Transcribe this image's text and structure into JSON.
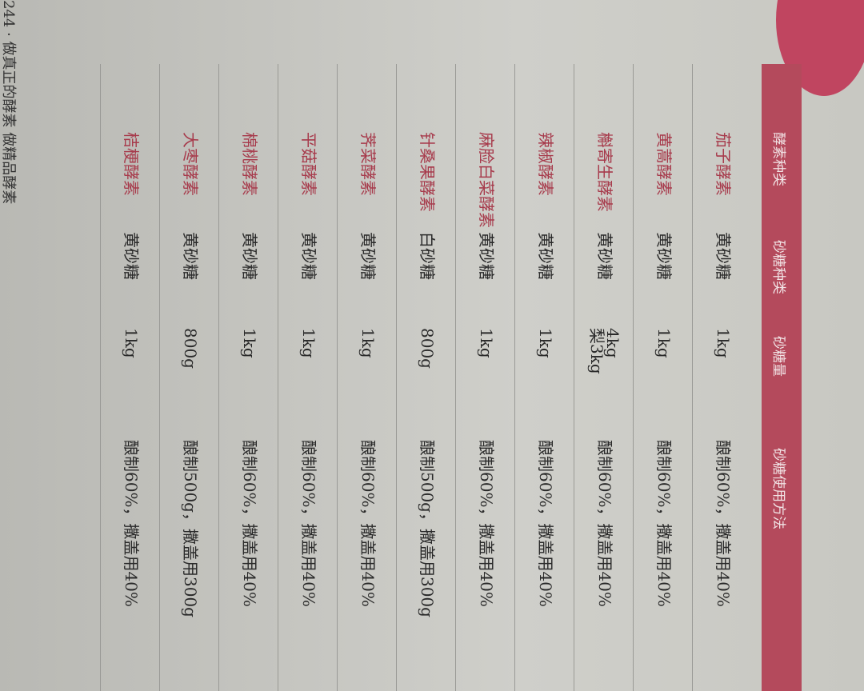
{
  "table": {
    "header": [
      "酵素种类",
      "砂糖种类",
      "砂糖量",
      "砂糖使用方法"
    ],
    "rows": [
      [
        "茄子酵素",
        "黄砂糖",
        "1kg",
        "酿制60%，撒盖用40%"
      ],
      [
        "黄蒿酵素",
        "黄砂糖",
        "1kg",
        "酿制60%，撒盖用40%"
      ],
      [
        "槲寄生酵素",
        "黄砂糖",
        "4kg\n梨3kg",
        "酿制60%，撒盖用40%"
      ],
      [
        "辣椒酵素",
        "黄砂糖",
        "1kg",
        "酿制60%，撒盖用40%"
      ],
      [
        "麻脸白菜酵素",
        "黄砂糖",
        "1kg",
        "酿制60%，撒盖用40%"
      ],
      [
        "针桑果酵素",
        "白砂糖",
        "800g",
        "酿制500g，撒盖用300g"
      ],
      [
        "荠菜酵素",
        "黄砂糖",
        "1kg",
        "酿制60%，撒盖用40%"
      ],
      [
        "平菇酵素",
        "黄砂糖",
        "1kg",
        "酿制60%，撒盖用40%"
      ],
      [
        "棉桃酵素",
        "黄砂糖",
        "1kg",
        "酿制60%，撒盖用40%"
      ],
      [
        "大枣酵素",
        "黄砂糖",
        "800g",
        "酿制500g，撒盖用300g"
      ],
      [
        "桔梗酵素",
        "黄砂糖",
        "1kg",
        "酿制60%，撒盖用40%"
      ]
    ]
  },
  "footer": "244 · 做真正的酵素 做精品酵素"
}
